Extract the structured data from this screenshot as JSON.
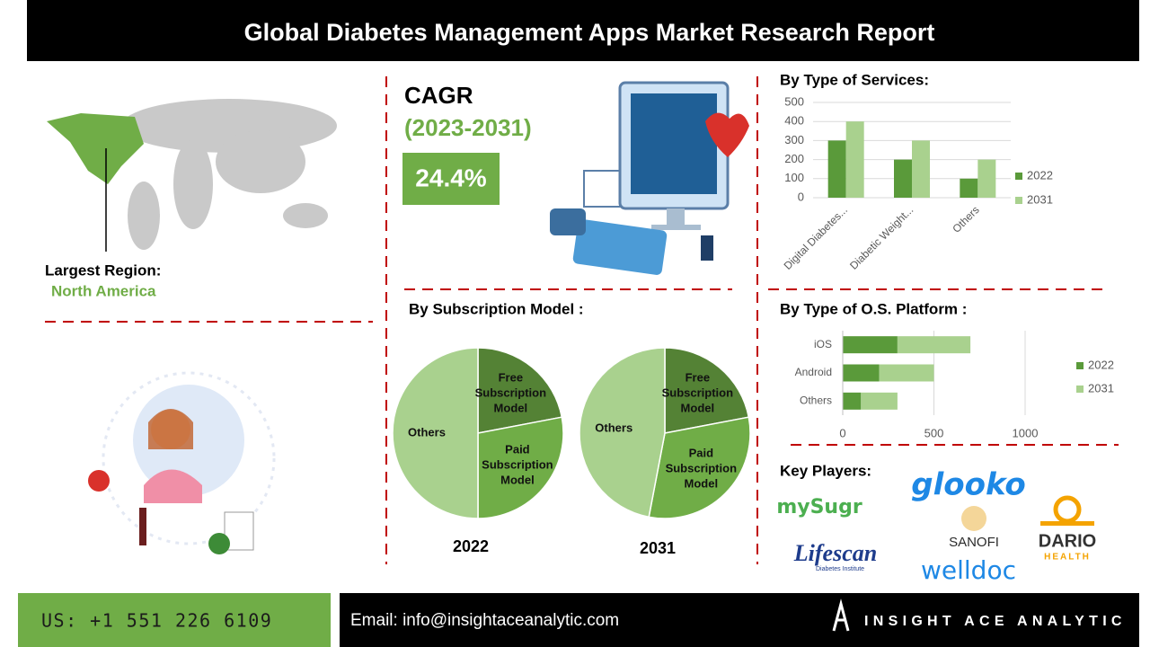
{
  "header": {
    "title": "Global Diabetes Management Apps Market Research Report"
  },
  "region": {
    "label": "Largest Region:",
    "value": "North America"
  },
  "cagr": {
    "label": "CAGR",
    "period": "(2023-2031)",
    "value": "24.4%"
  },
  "subscription": {
    "title": "By Subscription Model :"
  },
  "chart_data": [
    {
      "type": "bar",
      "title": "By Type of Services:",
      "orientation": "vertical",
      "stacked": false,
      "categories": [
        "Digital Diabetes...",
        "Diabetic Weight...",
        "Others"
      ],
      "series": [
        {
          "name": "2022",
          "color": "#5a9a3a",
          "values": [
            300,
            200,
            100
          ]
        },
        {
          "name": "2031",
          "color": "#a9d18e",
          "values": [
            400,
            300,
            200
          ]
        }
      ],
      "ylim": [
        0,
        500
      ],
      "yticks": [
        0,
        100,
        200,
        300,
        400,
        500
      ],
      "grid": true,
      "legend": "right"
    },
    {
      "type": "bar",
      "title": "By Type of O.S. Platform :",
      "orientation": "horizontal",
      "stacked": true,
      "categories": [
        "iOS",
        "Android",
        "Others"
      ],
      "series": [
        {
          "name": "2022",
          "color": "#5a9a3a",
          "values": [
            300,
            200,
            100
          ]
        },
        {
          "name": "2031",
          "color": "#a9d18e",
          "values": [
            400,
            300,
            200
          ]
        }
      ],
      "xlim": [
        0,
        1000
      ],
      "xticks": [
        0,
        500,
        1000
      ],
      "grid": true,
      "legend": "right"
    },
    {
      "type": "pie",
      "title": "2022",
      "categories": [
        "Free Subscription Model",
        "Paid Subscription Model",
        "Others"
      ],
      "colors": [
        "#548235",
        "#70ad47",
        "#a9d18e"
      ],
      "values": [
        22,
        28,
        50
      ]
    },
    {
      "type": "pie",
      "title": "2031",
      "categories": [
        "Free Subscription Model",
        "Paid Subscription Model",
        "Others"
      ],
      "colors": [
        "#548235",
        "#70ad47",
        "#a9d18e"
      ],
      "values": [
        22,
        31,
        47
      ]
    }
  ],
  "key_players": {
    "title": "Key Players:",
    "logos": [
      "mySugr",
      "glooko",
      "SANOFI",
      "DARIO",
      "HEALTH",
      "Lifescan",
      "Diabetes Institute",
      "welldoc"
    ]
  },
  "footer": {
    "phone": "US: +1 551 226 6109",
    "email": "Email: info@insightaceanalytic.com",
    "brand": "INSIGHT ACE ANALYTIC"
  }
}
